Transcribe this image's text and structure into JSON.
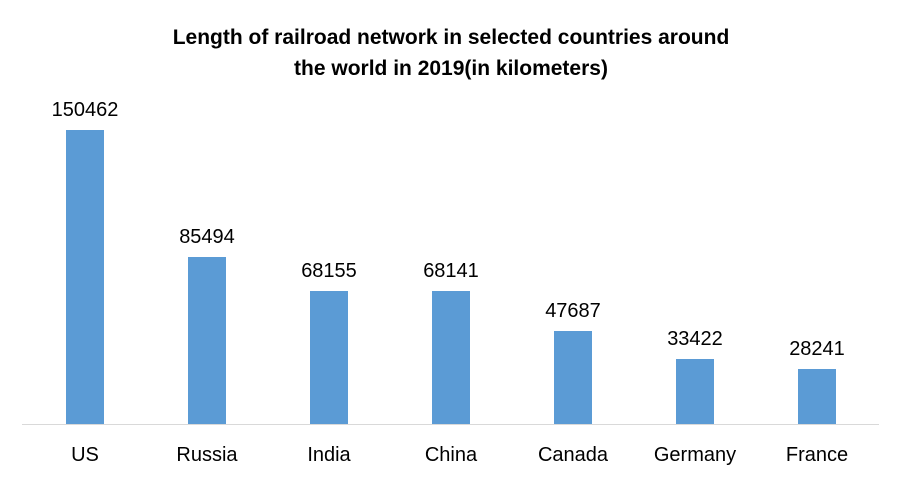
{
  "chart_data": {
    "type": "bar",
    "title": "Length of railroad network in selected countries around the world in 2019(in kilometers)",
    "title_lines": [
      "Length of railroad network in selected countries around",
      "the world in 2019(in kilometers)"
    ],
    "categories": [
      "US",
      "Russia",
      "India",
      "China",
      "Canada",
      "Germany",
      "France"
    ],
    "values": [
      150462,
      85494,
      68155,
      68141,
      47687,
      33422,
      28241
    ],
    "data_labels": [
      150462,
      85494,
      68155,
      68141,
      47687,
      33422,
      28241
    ],
    "xlabel": "",
    "ylabel": "",
    "ylim": [
      0,
      160000
    ],
    "grid": false,
    "legend": false,
    "bar_color": "#5b9bd5",
    "axis_line_color": "#d9d9d9",
    "text_color": "#000000"
  }
}
